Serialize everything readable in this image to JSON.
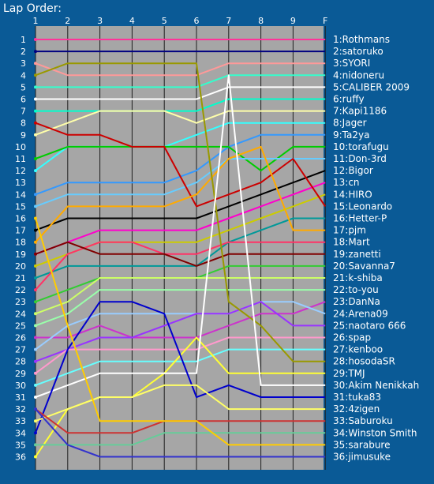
{
  "chart_data": {
    "type": "line",
    "title": "Lap Order:",
    "x_ticks": [
      "1",
      "2",
      "3",
      "4",
      "5",
      "6",
      "7",
      "8",
      "9",
      "F"
    ],
    "y_ticks": [
      1,
      2,
      3,
      4,
      5,
      6,
      7,
      8,
      9,
      10,
      11,
      12,
      13,
      14,
      15,
      16,
      17,
      18,
      19,
      20,
      21,
      22,
      23,
      24,
      25,
      26,
      27,
      28,
      29,
      30,
      31,
      32,
      33,
      34,
      35,
      36
    ],
    "ylim": [
      1,
      36
    ],
    "y_reversed": true,
    "plot_background": "#a6a6a6",
    "grid": "vertical",
    "series": [
      {
        "name": "Rothmans",
        "final": "1",
        "color": "#ff3399",
        "values": [
          1,
          1,
          1,
          1,
          1,
          1,
          1,
          1,
          1,
          1
        ]
      },
      {
        "name": "satoruko",
        "final": "2",
        "color": "#000080",
        "values": [
          2,
          2,
          2,
          2,
          2,
          2,
          2,
          2,
          2,
          2
        ]
      },
      {
        "name": "SYORI",
        "final": "3",
        "color": "#ff9999",
        "values": [
          3,
          4,
          4,
          4,
          4,
          4,
          3,
          3,
          3,
          3
        ]
      },
      {
        "name": "nidoneru",
        "final": "4",
        "color": "#33ffcc",
        "values": [
          5,
          5,
          5,
          5,
          5,
          5,
          4,
          4,
          4,
          4
        ]
      },
      {
        "name": "CALIBER 2009",
        "final": "5",
        "color": "#ffffff",
        "values": [
          6,
          6,
          6,
          6,
          6,
          6,
          5,
          5,
          5,
          5
        ]
      },
      {
        "name": "ruffy",
        "final": "6",
        "color": "#00ffcc",
        "values": [
          7,
          7,
          7,
          7,
          7,
          7,
          6,
          6,
          6,
          6
        ]
      },
      {
        "name": "Kapi1186",
        "final": "7",
        "color": "#ffffaa",
        "values": [
          9,
          8,
          7,
          7,
          7,
          8,
          7,
          7,
          7,
          7
        ]
      },
      {
        "name": "Jager",
        "final": "8",
        "color": "#33ffff",
        "values": [
          12,
          10,
          10,
          10,
          10,
          9,
          8,
          8,
          8,
          8
        ]
      },
      {
        "name": "Ta2ya",
        "final": "9",
        "color": "#3399ff",
        "values": [
          14,
          13,
          13,
          13,
          13,
          12,
          10,
          9,
          9,
          9
        ]
      },
      {
        "name": "torafugu",
        "final": "10",
        "color": "#00cc00",
        "values": [
          11,
          10,
          10,
          10,
          10,
          10,
          10,
          12,
          10,
          10
        ]
      },
      {
        "name": "Don-3rd",
        "final": "11",
        "color": "#66ccff",
        "values": [
          15,
          14,
          14,
          14,
          14,
          13,
          11,
          11,
          11,
          11
        ]
      },
      {
        "name": "Bigor",
        "final": "12",
        "color": "#000000",
        "values": [
          17,
          16,
          16,
          16,
          16,
          16,
          15,
          14,
          13,
          12
        ]
      },
      {
        "name": "cn",
        "final": "13",
        "color": "#ff00cc",
        "values": [
          19,
          18,
          17,
          17,
          17,
          17,
          16,
          15,
          14,
          13
        ]
      },
      {
        "name": "HIRO",
        "final": "14",
        "color": "#cccc00",
        "values": [
          20,
          19,
          18,
          18,
          18,
          18,
          17,
          16,
          15,
          14
        ]
      },
      {
        "name": "Leonardo",
        "final": "15",
        "color": "#cc0000",
        "values": [
          8,
          9,
          9,
          10,
          10,
          15,
          14,
          13,
          11,
          15
        ]
      },
      {
        "name": "Hetter-P",
        "final": "16",
        "color": "#009999",
        "values": [
          21,
          20,
          20,
          20,
          20,
          20,
          18,
          17,
          16,
          16
        ]
      },
      {
        "name": "pjm",
        "final": "17",
        "color": "#ffaa00",
        "values": [
          18,
          15,
          15,
          15,
          15,
          14,
          11,
          10,
          17,
          17
        ]
      },
      {
        "name": "Mart",
        "final": "18",
        "color": "#ff3366",
        "values": [
          22,
          19,
          18,
          18,
          19,
          19,
          18,
          18,
          18,
          18
        ]
      },
      {
        "name": "zanetti",
        "final": "19",
        "color": "#800000",
        "values": [
          19,
          18,
          19,
          19,
          19,
          20,
          19,
          19,
          19,
          19
        ]
      },
      {
        "name": "Savanna7",
        "final": "20",
        "color": "#33cc33",
        "values": [
          23,
          22,
          21,
          21,
          21,
          21,
          20,
          20,
          20,
          20
        ]
      },
      {
        "name": "k-shiba",
        "final": "21",
        "color": "#ccff66",
        "values": [
          24,
          23,
          21,
          21,
          21,
          21,
          21,
          21,
          21,
          21
        ]
      },
      {
        "name": "to-you",
        "final": "22",
        "color": "#99ffaa",
        "values": [
          25,
          24,
          22,
          22,
          22,
          22,
          22,
          22,
          22,
          22
        ]
      },
      {
        "name": "DanNa",
        "final": "23",
        "color": "#cc33cc",
        "values": [
          26,
          26,
          25,
          26,
          26,
          26,
          25,
          24,
          24,
          23
        ]
      },
      {
        "name": "Arena09",
        "final": "24",
        "color": "#99ccff",
        "values": [
          27,
          25,
          24,
          24,
          24,
          24,
          24,
          23,
          23,
          24
        ]
      },
      {
        "name": "naotaro 666",
        "final": "25",
        "color": "#9933ff",
        "values": [
          28,
          27,
          26,
          26,
          25,
          24,
          24,
          23,
          25,
          25
        ]
      },
      {
        "name": "spap",
        "final": "26",
        "color": "#ff99cc",
        "values": [
          29,
          27,
          27,
          27,
          27,
          27,
          26,
          26,
          26,
          26
        ]
      },
      {
        "name": "kenboo",
        "final": "27",
        "color": "#66ffff",
        "values": [
          30,
          29,
          28,
          28,
          28,
          28,
          27,
          27,
          27,
          27
        ]
      },
      {
        "name": "hosodaSR",
        "final": "28",
        "color": "#999900",
        "values": [
          4,
          3,
          3,
          3,
          3,
          3,
          23,
          25,
          28,
          28
        ]
      },
      {
        "name": "TMJ",
        "final": "29",
        "color": "#ffff33",
        "values": [
          36,
          32,
          31,
          31,
          29,
          26,
          29,
          29,
          29,
          29
        ]
      },
      {
        "name": "Akim Nenikkah",
        "final": "30",
        "color": "#ffffff",
        "values": [
          31,
          30,
          29,
          29,
          29,
          29,
          4,
          30,
          30,
          30
        ]
      },
      {
        "name": "tuka83",
        "final": "31",
        "color": "#0000cc",
        "values": [
          34,
          27,
          23,
          23,
          24,
          31,
          30,
          31,
          31,
          31
        ]
      },
      {
        "name": "4zigen",
        "final": "32",
        "color": "#ffff66",
        "values": [
          33,
          32,
          31,
          31,
          30,
          30,
          32,
          32,
          32,
          32
        ]
      },
      {
        "name": "Saburoku",
        "final": "33",
        "color": "#cc3333",
        "values": [
          32,
          34,
          34,
          34,
          33,
          33,
          33,
          33,
          33,
          33
        ]
      },
      {
        "name": "Winston Smith",
        "final": "34",
        "color": "#66cc99",
        "values": [
          35,
          35,
          35,
          35,
          34,
          34,
          34,
          34,
          34,
          34
        ]
      },
      {
        "name": "sarabure",
        "final": "35",
        "color": "#ffcc00",
        "values": [
          16,
          25,
          33,
          33,
          33,
          33,
          35,
          35,
          35,
          35
        ]
      },
      {
        "name": "jimusuke",
        "final": "36",
        "color": "#3333cc",
        "values": [
          32,
          35,
          36,
          36,
          36,
          36,
          36,
          36,
          36,
          36
        ]
      }
    ]
  }
}
